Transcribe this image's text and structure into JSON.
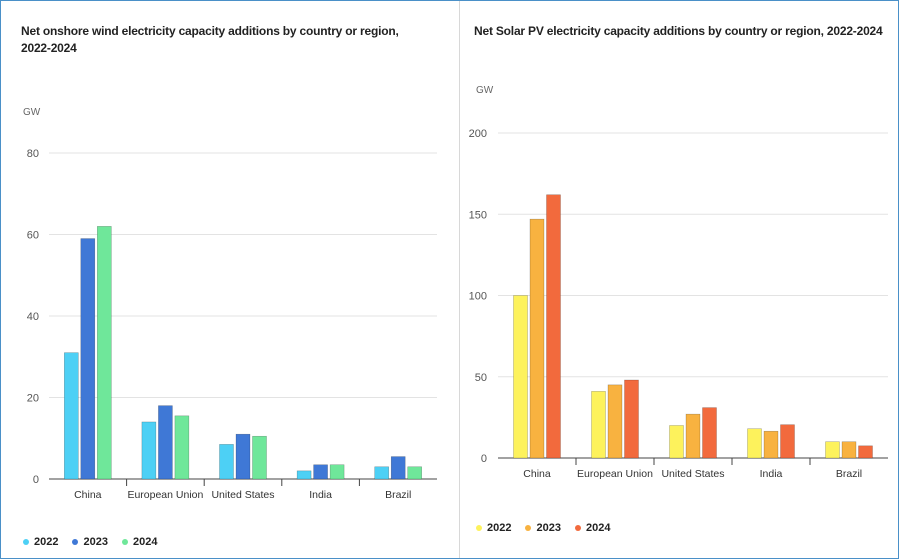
{
  "charts": [
    {
      "id": "wind",
      "type": "bar",
      "title": "Net onshore wind electricity capacity additions by country or region, 2022-2024",
      "unit": "GW",
      "categories": [
        "China",
        "European Union",
        "United States",
        "India",
        "Brazil"
      ],
      "ylim": [
        0,
        80
      ],
      "yticks": [
        0,
        20,
        40,
        60,
        80
      ],
      "grid": true,
      "legend_position": "bottom-left",
      "series": [
        {
          "name": "2022",
          "color": "#4dd0f5",
          "values": [
            31,
            14,
            8.5,
            2,
            3
          ]
        },
        {
          "name": "2023",
          "color": "#3f78d6",
          "values": [
            59,
            18,
            11,
            3.5,
            5.5
          ]
        },
        {
          "name": "2024",
          "color": "#6fe79a",
          "values": [
            62,
            15.5,
            10.5,
            3.5,
            3
          ]
        }
      ]
    },
    {
      "id": "solar",
      "type": "bar",
      "title": "Net Solar PV electricity capacity additions by country or region, 2022-2024",
      "unit": "GW",
      "categories": [
        "China",
        "European Union",
        "United States",
        "India",
        "Brazil"
      ],
      "ylim": [
        0,
        200
      ],
      "yticks": [
        0,
        50,
        100,
        150,
        200
      ],
      "grid": true,
      "legend_position": "bottom-left",
      "series": [
        {
          "name": "2022",
          "color": "#fdf25c",
          "values": [
            100,
            41,
            20,
            18,
            10
          ]
        },
        {
          "name": "2023",
          "color": "#f8b240",
          "values": [
            147,
            45,
            27,
            16.5,
            10
          ]
        },
        {
          "name": "2024",
          "color": "#f26a3d",
          "values": [
            162,
            48,
            31,
            20.5,
            7.5
          ]
        }
      ]
    }
  ]
}
